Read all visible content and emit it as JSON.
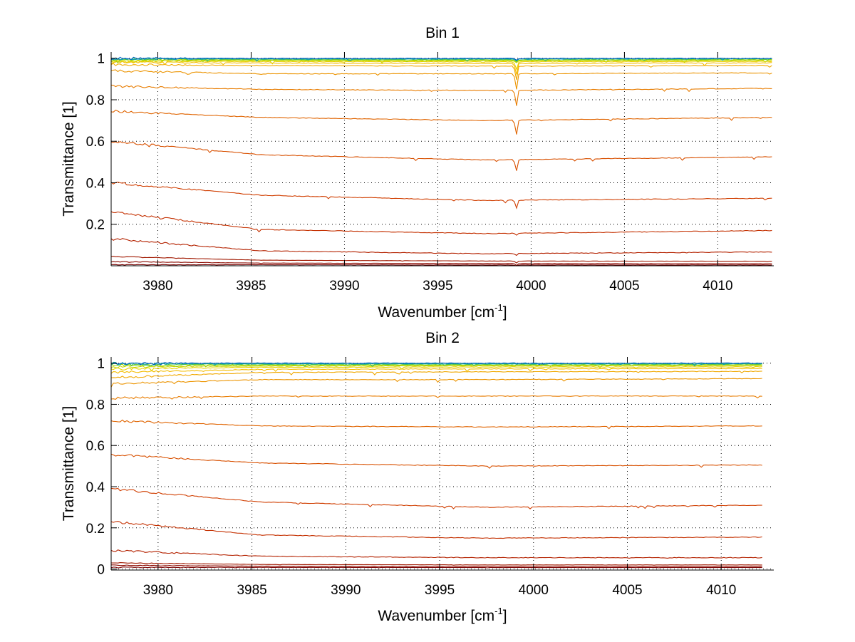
{
  "chart_data": [
    {
      "type": "line",
      "title": "Bin 1",
      "xlabel": "Wavenumber [cm",
      "xlabel_sup": "-1",
      "xlabel_close": "]",
      "ylabel": "Transmittance [1]",
      "xlim": [
        3977.5,
        4013
      ],
      "ylim": [
        0,
        1.03
      ],
      "xticks": [
        3980,
        3985,
        3990,
        3995,
        4000,
        4005,
        4010
      ],
      "yticks": [
        0.2,
        0.4,
        0.6,
        0.8,
        1
      ],
      "ytick_labels": [
        "0.2",
        "0.4",
        "0.6",
        "0.8",
        "1"
      ],
      "x_end": 4013,
      "grid": true,
      "absorption_line_x": 3999.2,
      "series": [
        {
          "color": "#7a0000",
          "values": [
            0.005,
            0.005,
            0.004,
            0.004
          ]
        },
        {
          "color": "#8c0a00",
          "values": [
            0.02,
            0.013,
            0.011,
            0.01
          ]
        },
        {
          "color": "#a01800",
          "values": [
            0.045,
            0.027,
            0.023,
            0.022
          ]
        },
        {
          "color": "#b42200",
          "values": [
            0.13,
            0.072,
            0.058,
            0.067
          ]
        },
        {
          "color": "#c43000",
          "values": [
            0.26,
            0.175,
            0.155,
            0.17
          ]
        },
        {
          "color": "#d03e00",
          "values": [
            0.4,
            0.34,
            0.315,
            0.325
          ]
        },
        {
          "color": "#d85000",
          "values": [
            0.6,
            0.535,
            0.51,
            0.525
          ]
        },
        {
          "color": "#e06400",
          "values": [
            0.745,
            0.715,
            0.7,
            0.715
          ]
        },
        {
          "color": "#e87c00",
          "values": [
            0.865,
            0.85,
            0.845,
            0.855
          ]
        },
        {
          "color": "#ec9400",
          "values": [
            0.94,
            0.925,
            0.925,
            0.93
          ]
        },
        {
          "color": "#f0a800",
          "values": [
            0.97,
            0.965,
            0.962,
            0.965
          ]
        },
        {
          "color": "#f4bc00",
          "values": [
            0.98,
            0.977,
            0.975,
            0.978
          ]
        },
        {
          "color": "#e8d000",
          "values": [
            0.986,
            0.984,
            0.983,
            0.985
          ]
        },
        {
          "color": "#c8d800",
          "values": [
            0.99,
            0.989,
            0.988,
            0.99
          ]
        },
        {
          "color": "#a0d400",
          "values": [
            0.993,
            0.992,
            0.991,
            0.993
          ]
        },
        {
          "color": "#40c060",
          "values": [
            0.996,
            0.995,
            0.995,
            0.996
          ]
        },
        {
          "color": "#10a0b0",
          "values": [
            0.998,
            0.997,
            0.997,
            0.998
          ]
        },
        {
          "color": "#0060c0",
          "values": [
            1.0,
            0.999,
            0.999,
            0.999
          ]
        }
      ]
    },
    {
      "type": "line",
      "title": "Bin 2",
      "xlabel": "Wavenumber [cm",
      "xlabel_sup": "-1",
      "xlabel_close": "]",
      "ylabel": "Transmittance [1]",
      "xlim": [
        3977.5,
        4012.8
      ],
      "ylim": [
        -0.005,
        1.03
      ],
      "xticks": [
        3980,
        3985,
        3990,
        3995,
        4000,
        4005,
        4010
      ],
      "yticks": [
        0,
        0.2,
        0.4,
        0.6,
        0.8,
        1
      ],
      "ytick_labels": [
        "0",
        "0.2",
        "0.4",
        "0.6",
        "0.8",
        "1"
      ],
      "x_end": 4012.2,
      "grid": true,
      "absorption_line_x": null,
      "series": [
        {
          "color": "#7a0000",
          "values": [
            0.008,
            0.008,
            0.007,
            0.007
          ]
        },
        {
          "color": "#8c0a00",
          "values": [
            0.018,
            0.014,
            0.012,
            0.012
          ]
        },
        {
          "color": "#a01800",
          "values": [
            0.03,
            0.022,
            0.02,
            0.02
          ]
        },
        {
          "color": "#b42200",
          "values": [
            0.09,
            0.062,
            0.055,
            0.055
          ]
        },
        {
          "color": "#c43000",
          "values": [
            0.23,
            0.165,
            0.15,
            0.155
          ]
        },
        {
          "color": "#d03e00",
          "values": [
            0.39,
            0.325,
            0.3,
            0.31
          ]
        },
        {
          "color": "#d85000",
          "values": [
            0.555,
            0.515,
            0.5,
            0.505
          ]
        },
        {
          "color": "#e06400",
          "values": [
            0.72,
            0.695,
            0.69,
            0.695
          ]
        },
        {
          "color": "#e87c00",
          "values": [
            0.83,
            0.84,
            0.84,
            0.84
          ]
        },
        {
          "color": "#ec9400",
          "values": [
            0.9,
            0.92,
            0.92,
            0.925
          ]
        },
        {
          "color": "#f0a800",
          "values": [
            0.93,
            0.955,
            0.958,
            0.96
          ]
        },
        {
          "color": "#f4bc00",
          "values": [
            0.955,
            0.97,
            0.972,
            0.974
          ]
        },
        {
          "color": "#e8d000",
          "values": [
            0.972,
            0.98,
            0.981,
            0.982
          ]
        },
        {
          "color": "#c8d800",
          "values": [
            0.982,
            0.986,
            0.987,
            0.988
          ]
        },
        {
          "color": "#a0d400",
          "values": [
            0.99,
            0.991,
            0.991,
            0.992
          ]
        },
        {
          "color": "#40c060",
          "values": [
            0.995,
            0.995,
            0.995,
            0.996
          ]
        },
        {
          "color": "#10a0b0",
          "values": [
            0.998,
            0.998,
            0.998,
            0.998
          ]
        },
        {
          "color": "#0060c0",
          "values": [
            1.0,
            1.0,
            1.0,
            1.0
          ]
        }
      ]
    }
  ]
}
